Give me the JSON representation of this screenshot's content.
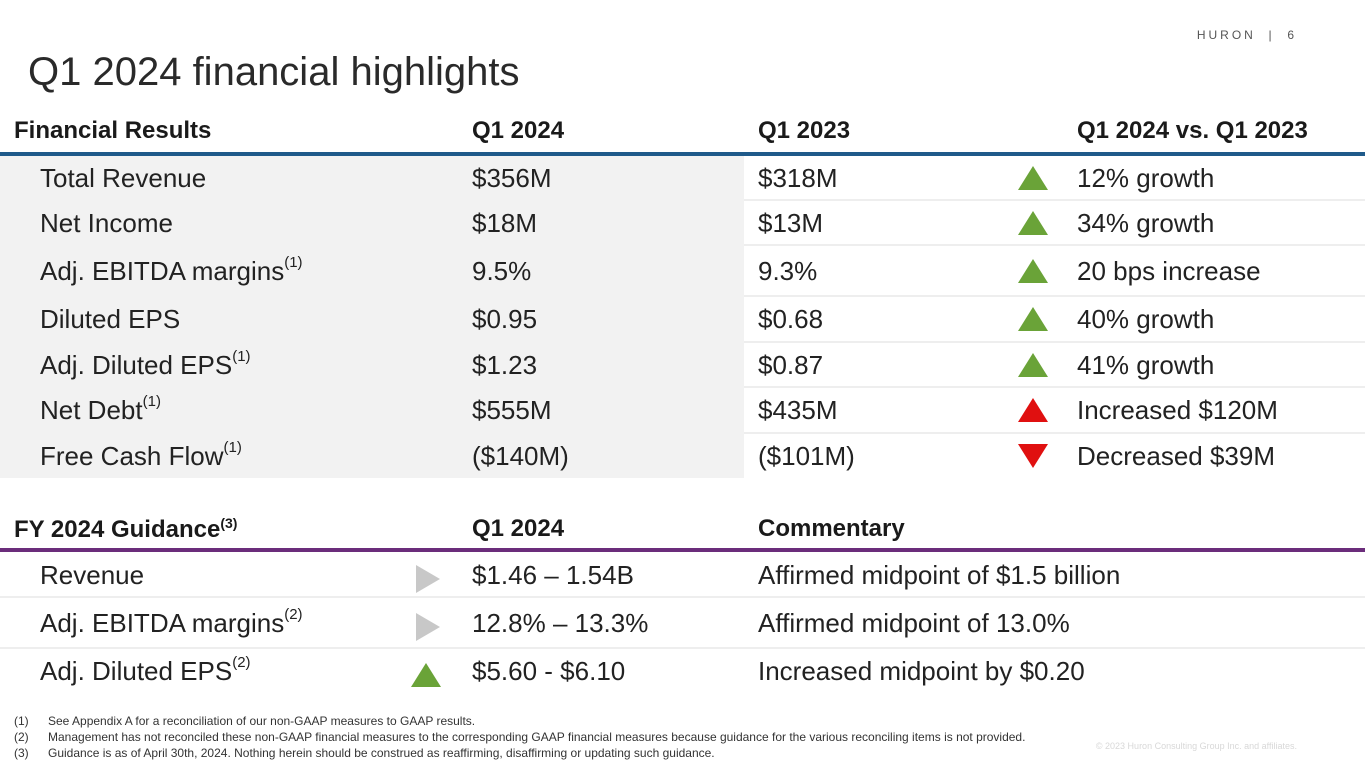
{
  "brand": "HURON",
  "page_number": "6",
  "title": "Q1 2024 financial highlights",
  "results": {
    "headers": [
      "Financial Results",
      "Q1 2024",
      "Q1 2023",
      "Q1 2024 vs. Q1 2023"
    ],
    "rows": [
      {
        "label": "Total Revenue",
        "sup": "",
        "q1_2024": "$356M",
        "q1_2023": "$318M",
        "trend": "up-green",
        "change": "12% growth"
      },
      {
        "label": "Net Income",
        "sup": "",
        "q1_2024": "$18M",
        "q1_2023": "$13M",
        "trend": "up-green",
        "change": "34% growth"
      },
      {
        "label": "Adj. EBITDA margins",
        "sup": "(1)",
        "q1_2024": "9.5%",
        "q1_2023": "9.3%",
        "trend": "up-green",
        "change": "20 bps increase"
      },
      {
        "label": "Diluted EPS",
        "sup": "",
        "q1_2024": "$0.95",
        "q1_2023": "$0.68",
        "trend": "up-green",
        "change": "40% growth"
      },
      {
        "label": "Adj. Diluted EPS",
        "sup": "(1)",
        "q1_2024": "$1.23",
        "q1_2023": "$0.87",
        "trend": "up-green",
        "change": "41% growth"
      },
      {
        "label": "Net Debt",
        "sup": "(1)",
        "q1_2024": "$555M",
        "q1_2023": "$435M",
        "trend": "up-red",
        "change": "Increased $120M"
      },
      {
        "label": "Free Cash Flow",
        "sup": "(1)",
        "q1_2024": "($140M)",
        "q1_2023": "($101M)",
        "trend": "down-red",
        "change": "Decreased $39M"
      }
    ]
  },
  "guidance": {
    "header_label": "FY 2024 Guidance",
    "header_sup": "(3)",
    "header_q1": "Q1 2024",
    "header_commentary": "Commentary",
    "rows": [
      {
        "label": "Revenue",
        "sup": "",
        "trend": "right-gray",
        "range": "$1.46 – 1.54B",
        "commentary": "Affirmed midpoint of $1.5 billion"
      },
      {
        "label": "Adj. EBITDA margins",
        "sup": "(2)",
        "trend": "right-gray",
        "range": "12.8% – 13.3%",
        "commentary": "Affirmed midpoint of 13.0%"
      },
      {
        "label": "Adj. Diluted EPS",
        "sup": "(2)",
        "trend": "up-green",
        "range": "$5.60 - $6.10",
        "commentary": "Increased midpoint by $0.20"
      }
    ]
  },
  "footnotes": [
    {
      "num": "(1)",
      "text": "See Appendix A for a reconciliation of our non-GAAP measures to GAAP results."
    },
    {
      "num": "(2)",
      "text": "Management has not reconciled these non-GAAP financial measures to the corresponding GAAP financial measures because guidance for the various reconciling items is not provided."
    },
    {
      "num": "(3)",
      "text": "Guidance is as of April 30th, 2024. Nothing herein should be construed as reaffirming, disaffirming or updating such guidance."
    }
  ],
  "copyright": "© 2023 Huron Consulting Group Inc. and affiliates.",
  "colors": {
    "accent_blue": "#1f5a8a",
    "accent_purple": "#6b2d7b",
    "up_green": "#6aa338",
    "red": "#e01010",
    "neutral_gray": "#c8c8c8"
  }
}
